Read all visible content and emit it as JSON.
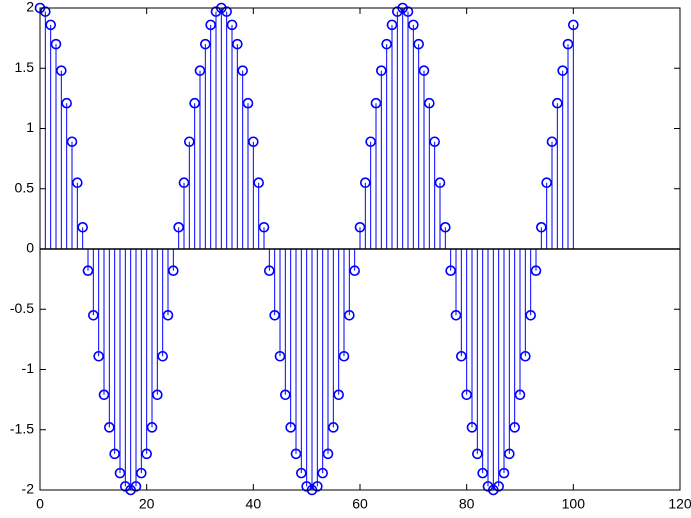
{
  "chart_data": {
    "type": "stem",
    "color": "#0000ff",
    "x": [
      0,
      1,
      2,
      3,
      4,
      5,
      6,
      7,
      8,
      9,
      10,
      11,
      12,
      13,
      14,
      15,
      16,
      17,
      18,
      19,
      20,
      21,
      22,
      23,
      24,
      25,
      26,
      27,
      28,
      29,
      30,
      31,
      32,
      33,
      34,
      35,
      36,
      37,
      38,
      39,
      40,
      41,
      42,
      43,
      44,
      45,
      46,
      47,
      48,
      49,
      50,
      51,
      52,
      53,
      54,
      55,
      56,
      57,
      58,
      59,
      60,
      61,
      62,
      63,
      64,
      65,
      66,
      67,
      68,
      69,
      70,
      71,
      72,
      73,
      74,
      75,
      76,
      77,
      78,
      79,
      80,
      81,
      82,
      83,
      84,
      85,
      86,
      87,
      88,
      89,
      90,
      91,
      92,
      93,
      94,
      95,
      96,
      97,
      98,
      99,
      100
    ],
    "values": [
      2,
      1.97,
      1.86,
      1.7,
      1.48,
      1.21,
      0.89,
      0.55,
      0.18,
      -0.18,
      -0.55,
      -0.89,
      -1.21,
      -1.48,
      -1.7,
      -1.86,
      -1.97,
      -2,
      -1.97,
      -1.86,
      -1.7,
      -1.48,
      -1.21,
      -0.89,
      -0.55,
      -0.18,
      0.18,
      0.55,
      0.89,
      1.21,
      1.48,
      1.7,
      1.86,
      1.97,
      2,
      1.97,
      1.86,
      1.7,
      1.48,
      1.21,
      0.89,
      0.55,
      0.18,
      -0.18,
      -0.55,
      -0.89,
      -1.21,
      -1.48,
      -1.7,
      -1.86,
      -1.97,
      -2,
      -1.97,
      -1.86,
      -1.7,
      -1.48,
      -1.21,
      -0.89,
      -0.55,
      -0.18,
      0.18,
      0.55,
      0.89,
      1.21,
      1.48,
      1.7,
      1.86,
      1.97,
      2,
      1.97,
      1.86,
      1.7,
      1.48,
      1.21,
      0.89,
      0.55,
      0.18,
      -0.18,
      -0.55,
      -0.89,
      -1.21,
      -1.48,
      -1.7,
      -1.86,
      -1.97,
      -2,
      -1.97,
      -1.86,
      -1.7,
      -1.48,
      -1.21,
      -0.89,
      -0.55,
      -0.18,
      0.18,
      0.55,
      0.89,
      1.21,
      1.48,
      1.7,
      1.86
    ],
    "xlim": [
      0,
      120
    ],
    "xticks": [
      0,
      20,
      40,
      60,
      80,
      100,
      120
    ],
    "ylim": [
      -2,
      2
    ],
    "yticks": [
      -2,
      -1.5,
      -1,
      -0.5,
      0,
      0.5,
      1,
      1.5,
      2
    ],
    "grid": false
  }
}
